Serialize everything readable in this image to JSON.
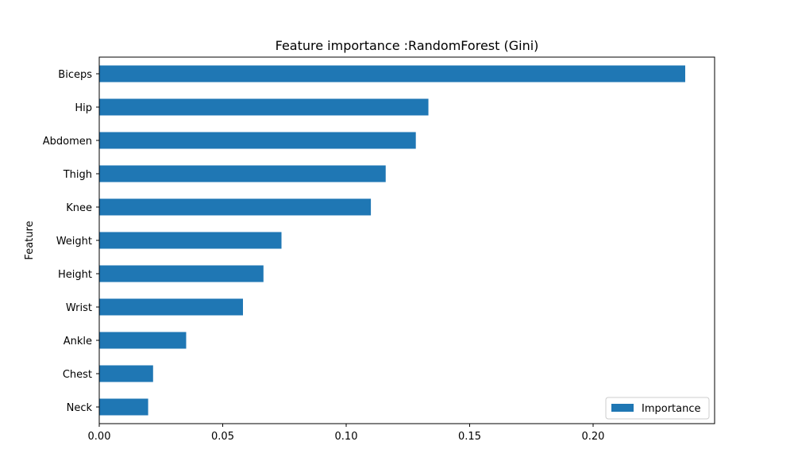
{
  "chart_data": {
    "type": "bar",
    "orientation": "horizontal",
    "title": "Feature importance :RandomForest (Gini)",
    "xlabel": "",
    "ylabel": "Feature",
    "categories": [
      "Neck",
      "Chest",
      "Ankle",
      "Wrist",
      "Height",
      "Weight",
      "Knee",
      "Thigh",
      "Abdomen",
      "Hip",
      "Biceps"
    ],
    "series": [
      {
        "name": "Importance",
        "color": "#1f77b4",
        "values": [
          0.0198,
          0.0218,
          0.0352,
          0.0582,
          0.0665,
          0.0738,
          0.11,
          0.116,
          0.1282,
          0.1333,
          0.2373
        ]
      }
    ],
    "xlim": [
      0.0,
      0.2492
    ],
    "xticks": [
      0.0,
      0.05,
      0.1,
      0.15,
      0.2
    ],
    "xtick_labels": [
      "0.00",
      "0.05",
      "0.10",
      "0.15",
      "0.20"
    ],
    "grid": false,
    "legend_position": "lower-right"
  }
}
